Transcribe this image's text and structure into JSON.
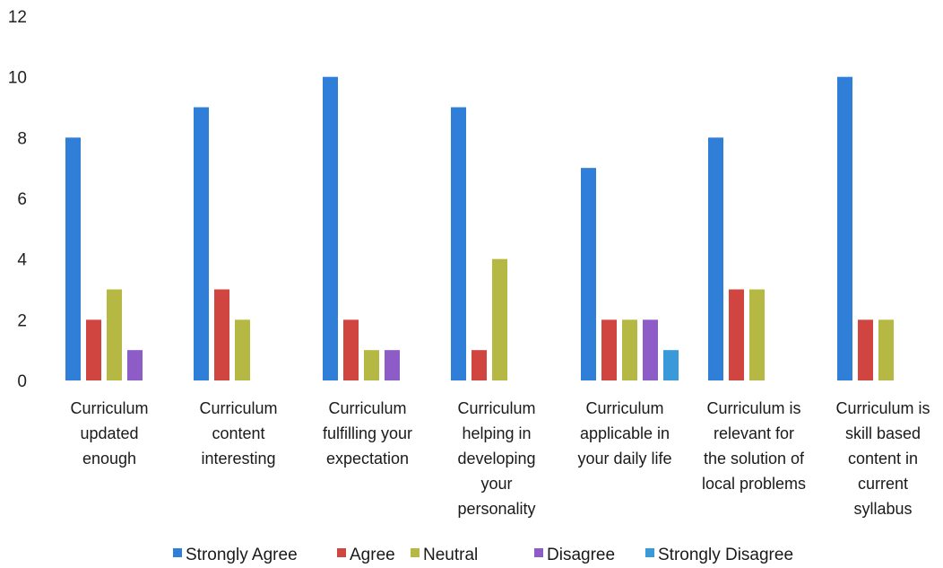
{
  "chart_data": {
    "type": "bar",
    "title": "",
    "xlabel": "",
    "ylabel": "",
    "ylim": [
      0,
      12
    ],
    "yticks": [
      0,
      2,
      4,
      6,
      8,
      10,
      12
    ],
    "grid": false,
    "legend_position": "bottom",
    "categories": [
      [
        "Curriculum",
        "updated",
        "enough"
      ],
      [
        "Curriculum",
        "content",
        "interesting"
      ],
      [
        "Curriculum",
        "fulfilling your",
        "expectation"
      ],
      [
        "Curriculum",
        "helping in",
        "developing",
        "your",
        "personality"
      ],
      [
        "Curriculum",
        "applicable in",
        "your daily life"
      ],
      [
        "Curriculum is",
        "relevant for",
        "the solution of",
        "local problems"
      ],
      [
        "Curriculum is",
        "skill based",
        "content in",
        "current",
        "syllabus"
      ]
    ],
    "series": [
      {
        "name": "Strongly Agree",
        "color": "#2f7ed8",
        "values": [
          8,
          9,
          10,
          9,
          7,
          8,
          10
        ]
      },
      {
        "name": "Agree",
        "color": "#d0453f",
        "values": [
          2,
          3,
          2,
          1,
          2,
          3,
          2
        ]
      },
      {
        "name": "Neutral",
        "color": "#b5b842",
        "values": [
          3,
          2,
          1,
          4,
          2,
          3,
          2
        ]
      },
      {
        "name": "Disagree",
        "color": "#8e5cc7",
        "values": [
          1,
          0,
          1,
          0,
          2,
          0,
          0
        ]
      },
      {
        "name": "Strongly Disagree",
        "color": "#3a9ad9",
        "values": [
          0,
          0,
          0,
          0,
          1,
          0,
          0
        ]
      }
    ]
  }
}
